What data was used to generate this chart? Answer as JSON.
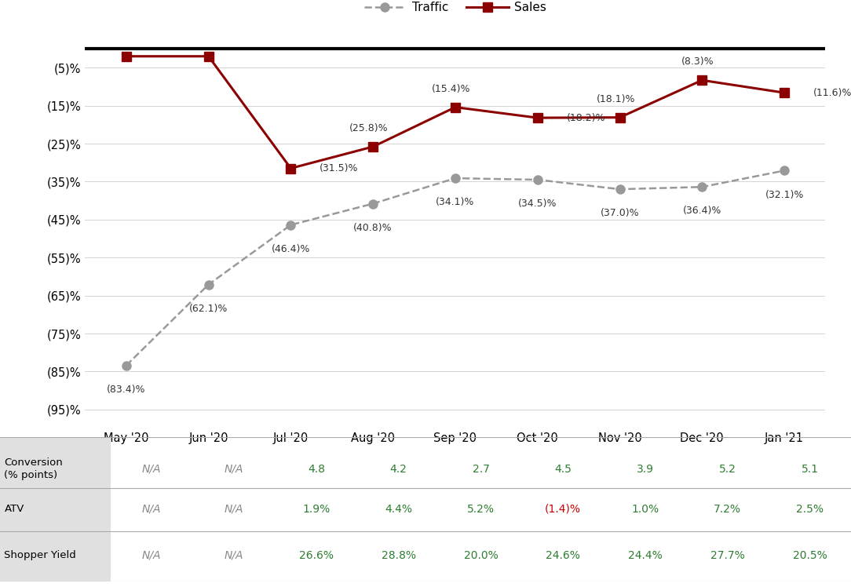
{
  "months": [
    "May '20",
    "Jun '20",
    "Jul '20",
    "Aug '20",
    "Sep '20",
    "Oct '20",
    "Nov '20",
    "Dec '20",
    "Jan '21"
  ],
  "traffic": [
    -83.4,
    -62.1,
    -46.4,
    -40.8,
    -34.1,
    -34.5,
    -37.0,
    -36.4,
    -32.1
  ],
  "sales": [
    -2.0,
    -2.0,
    -31.5,
    -25.8,
    -15.4,
    -18.2,
    -18.1,
    -8.3,
    -11.6
  ],
  "traffic_labels": [
    "(83.4)%",
    "(62.1)%",
    "(46.4)%",
    "(40.8)%",
    "(34.1)%",
    "(34.5)%",
    "(37.0)%",
    "(36.4)%",
    "(32.1)%"
  ],
  "sales_labels": [
    "",
    "",
    "(31.5)%",
    "(25.8)%",
    "(15.4)%",
    "(18.2)%",
    "(18.1)%",
    "(8.3)%",
    "(11.6)%"
  ],
  "traffic_color": "#999999",
  "sales_color": "#8B0000",
  "yticks": [
    0,
    -5,
    -15,
    -25,
    -35,
    -45,
    -55,
    -65,
    -75,
    -85,
    -95
  ],
  "ytick_labels": [
    "",
    "(5)%",
    "(15)%",
    "(25)%",
    "(35)%",
    "(45)%",
    "(55)%",
    "(65)%",
    "(75)%",
    "(85)%",
    "(95)%"
  ],
  "ylim": [
    -100,
    2
  ],
  "conversion_data": [
    "N/A",
    "N/A",
    "4.8",
    "4.2",
    "2.7",
    "4.5",
    "3.9",
    "5.2",
    "5.1"
  ],
  "atv_data": [
    "N/A",
    "N/A",
    "1.9%",
    "4.4%",
    "5.2%",
    "(1.4)%",
    "1.0%",
    "7.2%",
    "2.5%"
  ],
  "shopper_data": [
    "N/A",
    "N/A",
    "26.6%",
    "28.8%",
    "20.0%",
    "24.6%",
    "24.4%",
    "27.7%",
    "20.5%"
  ],
  "green_color": "#2E7D32",
  "red_color": "#CC0000",
  "na_color": "#888888",
  "background_color": "#FFFFFF",
  "label_bg_color": "#e0e0e0"
}
